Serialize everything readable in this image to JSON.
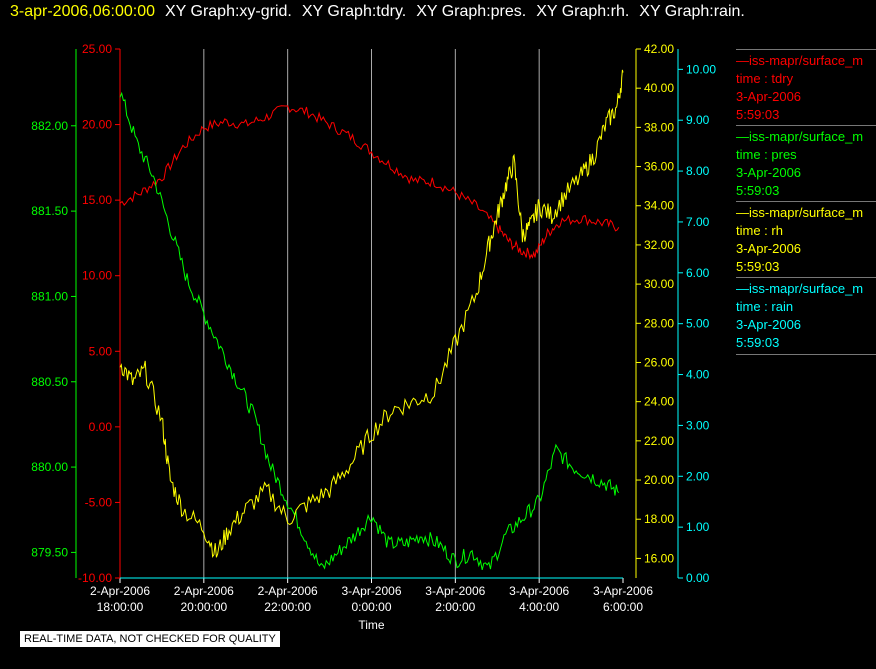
{
  "header": {
    "timestamp": "3-apr-2006,06:00:00",
    "graphs": [
      "XY Graph:xy-grid.",
      "XY Graph:tdry.",
      "XY Graph:pres.",
      "XY Graph:rh.",
      "XY Graph:rain."
    ]
  },
  "legend": [
    {
      "source": "—iss-mapr/surface_m",
      "var": "time : tdry",
      "date": "3-Apr-2006",
      "time": "5:59:03",
      "color": "#ff0000"
    },
    {
      "source": "—iss-mapr/surface_m",
      "var": "time : pres",
      "date": "3-Apr-2006",
      "time": "5:59:03",
      "color": "#00ff00"
    },
    {
      "source": "—iss-mapr/surface_m",
      "var": "time : rh",
      "date": "3-Apr-2006",
      "time": "5:59:03",
      "color": "#ffff00"
    },
    {
      "source": "—iss-mapr/surface_m",
      "var": "time : rain",
      "date": "3-Apr-2006",
      "time": "5:59:03",
      "color": "#00ffff"
    }
  ],
  "quality_note": "REAL-TIME DATA, NOT CHECKED FOR QUALITY",
  "chart_data": {
    "type": "line",
    "xlabel": "Time",
    "x_range_hours": [
      18.0,
      30.0
    ],
    "x_ticks": [
      {
        "h": 18,
        "line1": "2-Apr-2006",
        "line2": "18:00:00"
      },
      {
        "h": 20,
        "line1": "2-Apr-2006",
        "line2": "20:00:00"
      },
      {
        "h": 22,
        "line1": "2-Apr-2006",
        "line2": "22:00:00"
      },
      {
        "h": 24,
        "line1": "3-Apr-2006",
        "line2": "0:00:00"
      },
      {
        "h": 26,
        "line1": "3-Apr-2006",
        "line2": "2:00:00"
      },
      {
        "h": 28,
        "line1": "3-Apr-2006",
        "line2": "4:00:00"
      },
      {
        "h": 30,
        "line1": "3-Apr-2006",
        "line2": "6:00:00"
      }
    ],
    "axes": {
      "tdry": {
        "color": "#ff0000",
        "range": [
          -10,
          25
        ],
        "ticks": [
          "-10.00",
          "-5.00",
          "0.00",
          "5.00",
          "10.00",
          "15.00",
          "20.00",
          "25.00"
        ]
      },
      "pres": {
        "color": "#00ff00",
        "range": [
          879.35,
          882.45
        ],
        "ticks": [
          "879.50",
          "880.00",
          "880.50",
          "881.00",
          "881.50",
          "882.00"
        ]
      },
      "rh": {
        "color": "#ffff00",
        "range": [
          15.0,
          42.0
        ],
        "ticks": [
          "16.00",
          "18.00",
          "20.00",
          "22.00",
          "24.00",
          "26.00",
          "28.00",
          "30.00",
          "32.00",
          "34.00",
          "36.00",
          "38.00",
          "40.00",
          "42.00"
        ]
      },
      "rain": {
        "color": "#00ffff",
        "range": [
          0.0,
          10.4
        ],
        "ticks": [
          "0.00",
          "1.00",
          "2.00",
          "3.00",
          "4.00",
          "5.00",
          "6.00",
          "7.00",
          "8.00",
          "9.00",
          "10.00"
        ]
      }
    },
    "series": [
      {
        "name": "time : tdry",
        "axis": "tdry",
        "color": "#ff0000",
        "x": [
          18.0,
          18.5,
          19.0,
          19.5,
          20.0,
          20.5,
          21.0,
          21.5,
          22.0,
          22.5,
          23.0,
          23.5,
          24.0,
          24.5,
          25.0,
          25.5,
          26.0,
          26.5,
          27.0,
          27.3,
          27.6,
          27.9,
          28.2,
          28.5,
          29.0,
          29.5,
          29.9
        ],
        "y": [
          14.8,
          15.5,
          16.5,
          18.5,
          19.8,
          20.2,
          20.0,
          20.5,
          21.2,
          20.8,
          20.0,
          19.2,
          18.2,
          17.2,
          16.3,
          16.2,
          15.5,
          14.6,
          13.2,
          12.2,
          11.6,
          11.4,
          12.8,
          13.6,
          13.8,
          13.5,
          13.2
        ]
      },
      {
        "name": "time : pres",
        "axis": "pres",
        "color": "#00ff00",
        "x": [
          18.0,
          18.4,
          18.8,
          19.2,
          19.6,
          20.0,
          20.4,
          20.8,
          21.2,
          21.6,
          22.0,
          22.4,
          22.8,
          23.2,
          23.6,
          24.0,
          24.4,
          24.8,
          25.2,
          25.6,
          26.0,
          26.4,
          26.8,
          27.2,
          27.6,
          28.0,
          28.4,
          28.8,
          29.2,
          29.6,
          29.9
        ],
        "y": [
          882.2,
          881.9,
          881.7,
          881.4,
          881.1,
          880.9,
          880.7,
          880.5,
          880.3,
          880.0,
          879.8,
          879.6,
          879.4,
          879.5,
          879.6,
          879.72,
          879.55,
          879.55,
          879.6,
          879.55,
          879.45,
          879.5,
          879.4,
          879.6,
          879.7,
          879.8,
          880.1,
          880.0,
          879.95,
          879.9,
          879.85
        ]
      },
      {
        "name": "time : rh",
        "axis": "rh",
        "color": "#ffff00",
        "x": [
          18.0,
          18.3,
          18.6,
          19.0,
          19.2,
          19.5,
          20.0,
          20.3,
          20.6,
          21.0,
          21.5,
          22.0,
          22.5,
          23.0,
          23.5,
          24.0,
          24.5,
          25.0,
          25.5,
          26.0,
          26.5,
          26.8,
          27.0,
          27.2,
          27.4,
          27.6,
          27.8,
          28.0,
          28.3,
          28.6,
          29.0,
          29.3,
          29.6,
          29.85,
          30.0
        ],
        "y": [
          26.0,
          25.0,
          25.6,
          23.0,
          20.0,
          18.5,
          17.5,
          16.2,
          17.5,
          18.5,
          19.5,
          18.0,
          18.8,
          19.5,
          20.8,
          22.4,
          23.6,
          24.0,
          24.5,
          27.0,
          29.5,
          32.0,
          33.5,
          35.0,
          36.2,
          32.5,
          33.0,
          34.0,
          33.5,
          34.5,
          35.5,
          36.5,
          38.2,
          39.0,
          40.8
        ]
      },
      {
        "name": "time : rain",
        "axis": "rain",
        "color": "#00ffff",
        "x": [
          18.0,
          30.0
        ],
        "y": [
          0.0,
          0.0
        ]
      }
    ]
  }
}
